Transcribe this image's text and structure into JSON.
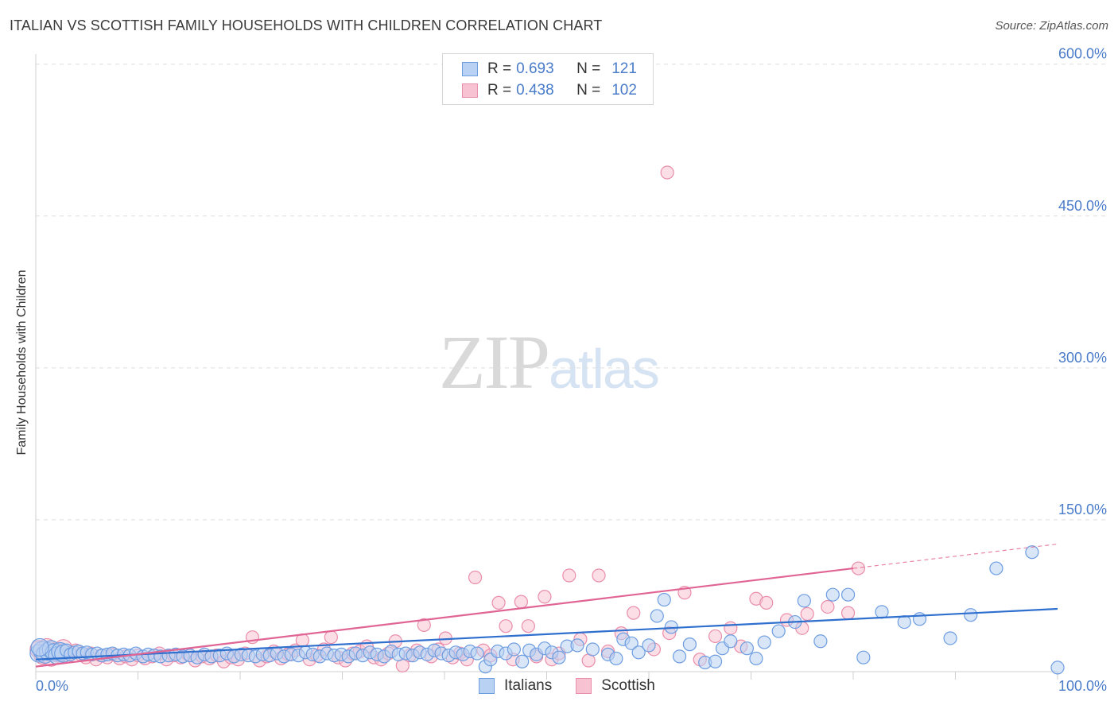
{
  "header": {
    "title": "ITALIAN VS SCOTTISH FAMILY HOUSEHOLDS WITH CHILDREN CORRELATION CHART",
    "source": "Source: ZipAtlas.com"
  },
  "watermark": {
    "zip": "ZIP",
    "atlas": "atlas"
  },
  "legend": {
    "italians": {
      "r_label": "R =",
      "r_value": "0.693",
      "n_label": "N =",
      "n_value": "121"
    },
    "scottish": {
      "r_label": "R =",
      "r_value": "0.438",
      "n_label": "N =",
      "n_value": "102"
    }
  },
  "bottom_legend": {
    "italians": "Italians",
    "scottish": "Scottish"
  },
  "colors": {
    "italians_fill": "#b9d2f3",
    "italians_stroke": "#6d9de0",
    "italians_line": "#2f6fce",
    "scottish_fill": "#f7c3d2",
    "scottish_stroke": "#e98eab",
    "scottish_line": "#e06494",
    "tick_label": "#4a7cc9",
    "grid": "#dedede"
  },
  "chart_data": {
    "type": "scatter",
    "title": "ITALIAN VS SCOTTISH FAMILY HOUSEHOLDS WITH CHILDREN CORRELATION CHART",
    "xlabel": "",
    "ylabel": "Family Households with Children",
    "xlim": [
      0,
      100
    ],
    "ylim": [
      0,
      600
    ],
    "x_tick_labels": [
      "0.0%",
      "100.0%"
    ],
    "y_ticks": [
      150,
      300,
      450,
      600
    ],
    "y_tick_labels": [
      "150.0%",
      "300.0%",
      "450.0%",
      "600.0%"
    ],
    "grid": true,
    "legend_position": "top-center",
    "series": [
      {
        "name": "Italians",
        "r": 0.693,
        "n": 121,
        "trend": {
          "x": [
            0,
            100
          ],
          "y": [
            12,
            62
          ]
        },
        "points": [
          [
            0.3,
            18
          ],
          [
            0.6,
            21
          ],
          [
            0.9,
            17
          ],
          [
            1.2,
            20
          ],
          [
            1.5,
            22
          ],
          [
            1.8,
            19
          ],
          [
            2.1,
            16
          ],
          [
            2.4,
            20
          ],
          [
            2.7,
            18
          ],
          [
            3.0,
            21
          ],
          [
            3.4,
            17
          ],
          [
            3.8,
            19
          ],
          [
            4.2,
            20
          ],
          [
            4.6,
            18
          ],
          [
            5,
            19
          ],
          [
            5.5,
            17
          ],
          [
            6,
            18
          ],
          [
            6.5,
            16
          ],
          [
            7,
            17
          ],
          [
            7.5,
            18
          ],
          [
            8,
            16
          ],
          [
            8.6,
            17
          ],
          [
            9.2,
            16
          ],
          [
            9.8,
            18
          ],
          [
            10.5,
            15
          ],
          [
            11,
            17
          ],
          [
            11.6,
            16
          ],
          [
            12.2,
            15
          ],
          [
            13,
            16
          ],
          [
            13.7,
            17
          ],
          [
            14.4,
            15
          ],
          [
            15.1,
            16
          ],
          [
            15.8,
            14
          ],
          [
            16.5,
            17
          ],
          [
            17.2,
            15
          ],
          [
            18,
            16
          ],
          [
            18.7,
            18
          ],
          [
            19.4,
            15
          ],
          [
            20.1,
            17
          ],
          [
            20.8,
            16
          ],
          [
            21.5,
            15
          ],
          [
            22.2,
            17
          ],
          [
            22.9,
            16
          ],
          [
            23.6,
            18
          ],
          [
            24.3,
            15
          ],
          [
            25,
            17
          ],
          [
            25.7,
            16
          ],
          [
            26.4,
            19
          ],
          [
            27.1,
            17
          ],
          [
            27.8,
            15
          ],
          [
            28.5,
            18
          ],
          [
            29.2,
            16
          ],
          [
            29.9,
            17
          ],
          [
            30.6,
            15
          ],
          [
            31.3,
            18
          ],
          [
            32,
            16
          ],
          [
            32.7,
            19
          ],
          [
            33.4,
            17
          ],
          [
            34.1,
            15
          ],
          [
            34.8,
            20
          ],
          [
            35.5,
            17
          ],
          [
            36.2,
            18
          ],
          [
            36.9,
            16
          ],
          [
            37.6,
            19
          ],
          [
            38.3,
            17
          ],
          [
            39,
            21
          ],
          [
            39.7,
            18
          ],
          [
            40.4,
            16
          ],
          [
            41.1,
            19
          ],
          [
            41.8,
            17
          ],
          [
            42.5,
            20
          ],
          [
            43.2,
            18
          ],
          [
            44,
            5
          ],
          [
            44.5,
            12
          ],
          [
            45.2,
            20
          ],
          [
            46,
            18
          ],
          [
            46.8,
            22
          ],
          [
            47.6,
            10
          ],
          [
            48.3,
            21
          ],
          [
            49,
            17
          ],
          [
            49.8,
            23
          ],
          [
            50.5,
            19
          ],
          [
            51.2,
            14
          ],
          [
            52,
            25
          ],
          [
            53,
            26
          ],
          [
            54.5,
            22
          ],
          [
            56,
            17
          ],
          [
            56.8,
            13
          ],
          [
            57.5,
            32
          ],
          [
            58.3,
            28
          ],
          [
            59,
            19
          ],
          [
            60,
            26
          ],
          [
            60.8,
            55
          ],
          [
            61.5,
            71
          ],
          [
            62.2,
            44
          ],
          [
            63,
            15
          ],
          [
            64,
            27
          ],
          [
            65.5,
            9
          ],
          [
            66.5,
            10
          ],
          [
            67.2,
            23
          ],
          [
            68,
            30
          ],
          [
            69.6,
            23
          ],
          [
            70.5,
            13
          ],
          [
            71.3,
            29
          ],
          [
            72.7,
            40
          ],
          [
            74.3,
            49
          ],
          [
            75.2,
            70
          ],
          [
            76.8,
            30
          ],
          [
            78,
            76
          ],
          [
            79.5,
            76
          ],
          [
            81,
            14
          ],
          [
            82.8,
            59
          ],
          [
            85,
            49
          ],
          [
            86.5,
            52
          ],
          [
            89.5,
            33
          ],
          [
            91.5,
            56
          ],
          [
            94,
            102
          ],
          [
            97.5,
            118
          ],
          [
            100,
            4
          ],
          [
            0.4,
            24
          ]
        ]
      },
      {
        "name": "Scottish",
        "r": 0.438,
        "n": 102,
        "trend": {
          "x": [
            0,
            80
          ],
          "y": [
            5,
            102
          ]
        },
        "trend_dashed": {
          "x": [
            80,
            100
          ],
          "y": [
            102,
            126
          ]
        },
        "points": [
          [
            0.3,
            22
          ],
          [
            0.7,
            16
          ],
          [
            1.1,
            24
          ],
          [
            1.5,
            14
          ],
          [
            1.9,
            20
          ],
          [
            2.3,
            18
          ],
          [
            2.7,
            23
          ],
          [
            3.1,
            15
          ],
          [
            3.5,
            19
          ],
          [
            3.9,
            21
          ],
          [
            4.4,
            17
          ],
          [
            4.9,
            14
          ],
          [
            5.4,
            18
          ],
          [
            5.9,
            12
          ],
          [
            6.4,
            16
          ],
          [
            7,
            14
          ],
          [
            7.6,
            17
          ],
          [
            8.2,
            13
          ],
          [
            8.8,
            15
          ],
          [
            9.4,
            12
          ],
          [
            10,
            16
          ],
          [
            10.7,
            13
          ],
          [
            11.4,
            15
          ],
          [
            12.1,
            18
          ],
          [
            12.8,
            12
          ],
          [
            13.5,
            16
          ],
          [
            14.2,
            14
          ],
          [
            14.9,
            17
          ],
          [
            15.6,
            11
          ],
          [
            16.3,
            15
          ],
          [
            17,
            13
          ],
          [
            17.7,
            16
          ],
          [
            18.4,
            10
          ],
          [
            19.1,
            14
          ],
          [
            19.8,
            12
          ],
          [
            20.5,
            18
          ],
          [
            21.2,
            34
          ],
          [
            21.9,
            11
          ],
          [
            22.6,
            15
          ],
          [
            23.3,
            20
          ],
          [
            24,
            13
          ],
          [
            24.7,
            17
          ],
          [
            25.4,
            21
          ],
          [
            26.1,
            31
          ],
          [
            26.8,
            12
          ],
          [
            27.5,
            16
          ],
          [
            28.2,
            22
          ],
          [
            28.9,
            34
          ],
          [
            29.6,
            14
          ],
          [
            30.3,
            11
          ],
          [
            31,
            18
          ],
          [
            31.7,
            20
          ],
          [
            32.4,
            25
          ],
          [
            33.1,
            14
          ],
          [
            33.8,
            12
          ],
          [
            34.5,
            18
          ],
          [
            35.2,
            30
          ],
          [
            35.9,
            6
          ],
          [
            36.6,
            16
          ],
          [
            37.3,
            21
          ],
          [
            38,
            46
          ],
          [
            38.7,
            15
          ],
          [
            39.4,
            22
          ],
          [
            40.1,
            33
          ],
          [
            40.8,
            14
          ],
          [
            41.5,
            18
          ],
          [
            42.2,
            12
          ],
          [
            43,
            93
          ],
          [
            43.8,
            21
          ],
          [
            44.5,
            16
          ],
          [
            45.3,
            68
          ],
          [
            46,
            45
          ],
          [
            46.7,
            12
          ],
          [
            47.5,
            69
          ],
          [
            48.2,
            45
          ],
          [
            49,
            15
          ],
          [
            49.8,
            74
          ],
          [
            50.5,
            12
          ],
          [
            51.2,
            18
          ],
          [
            52.2,
            95
          ],
          [
            53.3,
            32
          ],
          [
            54.1,
            11
          ],
          [
            55.1,
            95
          ],
          [
            56,
            20
          ],
          [
            57.3,
            38
          ],
          [
            58.5,
            58
          ],
          [
            60.5,
            22
          ],
          [
            62,
            38
          ],
          [
            63.5,
            78
          ],
          [
            65,
            12
          ],
          [
            66.5,
            35
          ],
          [
            68,
            43
          ],
          [
            69,
            25
          ],
          [
            70.5,
            72
          ],
          [
            71.5,
            68
          ],
          [
            73.5,
            51
          ],
          [
            75,
            43
          ],
          [
            75.5,
            57
          ],
          [
            77.5,
            64
          ],
          [
            79.5,
            58
          ],
          [
            80.5,
            102
          ],
          [
            61.8,
            493
          ]
        ]
      }
    ]
  }
}
